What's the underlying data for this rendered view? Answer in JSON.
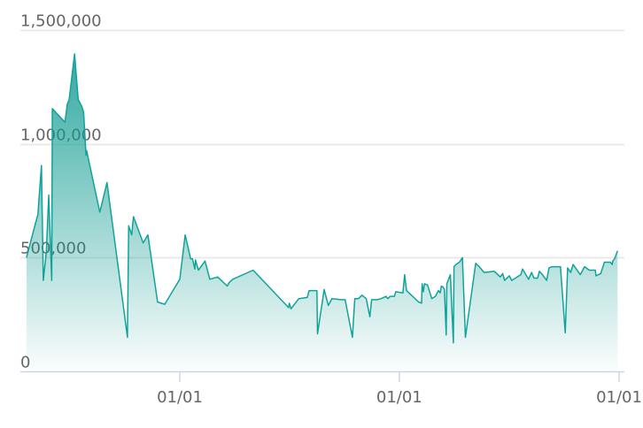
{
  "chart_data": {
    "type": "area",
    "title": "",
    "xlabel": "",
    "ylabel": "",
    "ylim": [
      0,
      1500000
    ],
    "y_ticks": [
      "0",
      "500,000",
      "1,000,000",
      "1,500,000"
    ],
    "y_tick_values": [
      0,
      500000,
      1000000,
      1500000
    ],
    "x_ticks": [
      "01/01",
      "01/01",
      "01/01"
    ],
    "x_tick_dates": [
      "2019-01-01",
      "2020-01-01",
      "2021-01-01"
    ],
    "grid": true,
    "colors": {
      "line": "#10a39a",
      "fill_top": "#0d9a90",
      "grid": "#e6e6e6",
      "axis": "#ccd6eb"
    },
    "points": [
      [
        "2018-04-21",
        500000
      ],
      [
        "2018-05-07",
        660000
      ],
      [
        "2018-05-10",
        690000
      ],
      [
        "2018-05-16",
        905000
      ],
      [
        "2018-05-19",
        400000
      ],
      [
        "2018-05-24",
        525000
      ],
      [
        "2018-05-28",
        775000
      ],
      [
        "2018-06-02",
        400000
      ],
      [
        "2018-06-03",
        1155000
      ],
      [
        "2018-06-24",
        1095000
      ],
      [
        "2018-06-28",
        1175000
      ],
      [
        "2018-07-01",
        1195000
      ],
      [
        "2018-07-10",
        1395000
      ],
      [
        "2018-07-16",
        1195000
      ],
      [
        "2018-07-22",
        1165000
      ],
      [
        "2018-07-25",
        1140000
      ],
      [
        "2018-07-29",
        950000
      ],
      [
        "2018-07-30",
        970000
      ],
      [
        "2018-08-21",
        700000
      ],
      [
        "2018-09-02",
        830000
      ],
      [
        "2018-10-06",
        150000
      ],
      [
        "2018-10-08",
        640000
      ],
      [
        "2018-10-13",
        600000
      ],
      [
        "2018-10-16",
        680000
      ],
      [
        "2018-11-01",
        565000
      ],
      [
        "2018-11-09",
        600000
      ],
      [
        "2018-11-25",
        305000
      ],
      [
        "2018-12-07",
        295000
      ],
      [
        "2019-01-01",
        405000
      ],
      [
        "2019-01-10",
        600000
      ],
      [
        "2019-01-19",
        495000
      ],
      [
        "2019-01-22",
        495000
      ],
      [
        "2019-01-26",
        450000
      ],
      [
        "2019-01-27",
        490000
      ],
      [
        "2019-02-01",
        445000
      ],
      [
        "2019-02-12",
        485000
      ],
      [
        "2019-02-20",
        405000
      ],
      [
        "2019-03-05",
        415000
      ],
      [
        "2019-03-21",
        375000
      ],
      [
        "2019-03-24",
        390000
      ],
      [
        "2019-03-30",
        405000
      ],
      [
        "2019-05-03",
        445000
      ],
      [
        "2019-07-01",
        280000
      ],
      [
        "2019-07-02",
        300000
      ],
      [
        "2019-07-05",
        275000
      ],
      [
        "2019-07-18",
        320000
      ],
      [
        "2019-08-01",
        325000
      ],
      [
        "2019-08-04",
        355000
      ],
      [
        "2019-08-17",
        355000
      ],
      [
        "2019-08-18",
        165000
      ],
      [
        "2019-08-29",
        360000
      ],
      [
        "2019-09-05",
        290000
      ],
      [
        "2019-09-11",
        320000
      ],
      [
        "2019-09-26",
        315000
      ],
      [
        "2019-10-03",
        315000
      ],
      [
        "2019-10-15",
        150000
      ],
      [
        "2019-10-19",
        320000
      ],
      [
        "2019-10-25",
        320000
      ],
      [
        "2019-10-31",
        335000
      ],
      [
        "2019-11-07",
        320000
      ],
      [
        "2019-11-13",
        240000
      ],
      [
        "2019-11-16",
        315000
      ],
      [
        "2019-11-25",
        315000
      ],
      [
        "2019-12-02",
        320000
      ],
      [
        "2019-12-10",
        330000
      ],
      [
        "2019-12-13",
        320000
      ],
      [
        "2019-12-17",
        330000
      ],
      [
        "2019-12-24",
        330000
      ],
      [
        "2019-12-26",
        350000
      ],
      [
        "2020-01-07",
        345000
      ],
      [
        "2020-01-10",
        425000
      ],
      [
        "2020-01-13",
        355000
      ],
      [
        "2020-02-02",
        305000
      ],
      [
        "2020-02-07",
        300000
      ],
      [
        "2020-02-08",
        385000
      ],
      [
        "2020-02-10",
        350000
      ],
      [
        "2020-02-12",
        385000
      ],
      [
        "2020-02-17",
        380000
      ],
      [
        "2020-02-24",
        320000
      ],
      [
        "2020-03-01",
        330000
      ],
      [
        "2020-03-06",
        355000
      ],
      [
        "2020-03-09",
        345000
      ],
      [
        "2020-03-11",
        375000
      ],
      [
        "2020-03-14",
        370000
      ],
      [
        "2020-03-16",
        360000
      ],
      [
        "2020-03-19",
        160000
      ],
      [
        "2020-03-20",
        385000
      ],
      [
        "2020-03-26",
        425000
      ],
      [
        "2020-03-31",
        125000
      ],
      [
        "2020-04-01",
        460000
      ],
      [
        "2020-04-04",
        470000
      ],
      [
        "2020-04-10",
        480000
      ],
      [
        "2020-04-15",
        500000
      ],
      [
        "2020-04-20",
        150000
      ],
      [
        "2020-05-07",
        475000
      ],
      [
        "2020-05-13",
        460000
      ],
      [
        "2020-05-21",
        435000
      ],
      [
        "2020-06-07",
        440000
      ],
      [
        "2020-06-17",
        415000
      ],
      [
        "2020-06-21",
        430000
      ],
      [
        "2020-06-24",
        400000
      ],
      [
        "2020-07-02",
        420000
      ],
      [
        "2020-07-06",
        400000
      ],
      [
        "2020-07-21",
        425000
      ],
      [
        "2020-07-24",
        450000
      ],
      [
        "2020-08-03",
        405000
      ],
      [
        "2020-08-08",
        435000
      ],
      [
        "2020-08-12",
        410000
      ],
      [
        "2020-08-18",
        410000
      ],
      [
        "2020-08-21",
        440000
      ],
      [
        "2020-08-26",
        425000
      ],
      [
        "2020-09-02",
        400000
      ],
      [
        "2020-09-06",
        455000
      ],
      [
        "2020-09-11",
        460000
      ],
      [
        "2020-09-18",
        460000
      ],
      [
        "2020-09-25",
        460000
      ],
      [
        "2020-10-03",
        170000
      ],
      [
        "2020-10-07",
        455000
      ],
      [
        "2020-10-12",
        435000
      ],
      [
        "2020-10-16",
        470000
      ],
      [
        "2020-10-28",
        425000
      ],
      [
        "2020-11-04",
        460000
      ],
      [
        "2020-11-12",
        445000
      ],
      [
        "2020-11-22",
        445000
      ],
      [
        "2020-11-23",
        420000
      ],
      [
        "2020-12-01",
        430000
      ],
      [
        "2020-12-07",
        480000
      ],
      [
        "2020-12-17",
        480000
      ],
      [
        "2020-12-20",
        470000
      ],
      [
        "2020-12-21",
        485000
      ],
      [
        "2020-12-24",
        495000
      ],
      [
        "2020-12-29",
        530000
      ]
    ]
  }
}
